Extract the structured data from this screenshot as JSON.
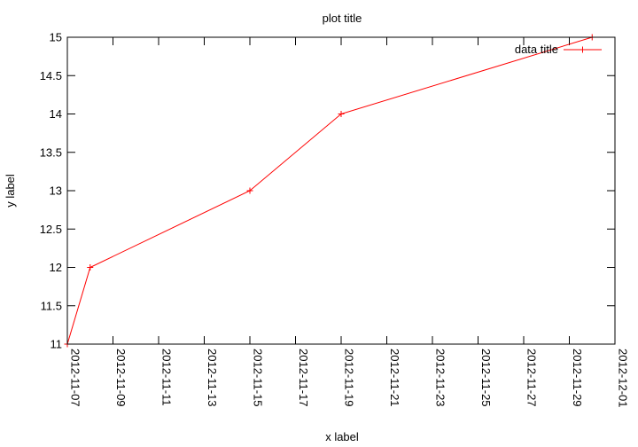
{
  "chart_data": {
    "type": "line",
    "title": "plot title",
    "xlabel": "x label",
    "ylabel": "y label",
    "x_axis_type": "date",
    "xlim": [
      "2012-11-07",
      "2012-12-01"
    ],
    "ylim": [
      11,
      15
    ],
    "x_ticks": [
      "2012-11-07",
      "2012-11-09",
      "2012-11-11",
      "2012-11-13",
      "2012-11-15",
      "2012-11-17",
      "2012-11-19",
      "2012-11-21",
      "2012-11-23",
      "2012-11-25",
      "2012-11-27",
      "2012-11-29",
      "2012-12-01"
    ],
    "y_ticks": [
      "11",
      "11.5",
      "12",
      "12.5",
      "13",
      "13.5",
      "14",
      "14.5",
      "15"
    ],
    "grid": false,
    "legend_position": "top-right",
    "series": [
      {
        "name": "data title",
        "color": "#ff0000",
        "marker": "plus",
        "x": [
          "2012-11-07",
          "2012-11-08",
          "2012-11-15",
          "2012-11-19",
          "2012-11-30"
        ],
        "y": [
          11,
          12,
          13,
          14,
          15
        ]
      }
    ]
  }
}
